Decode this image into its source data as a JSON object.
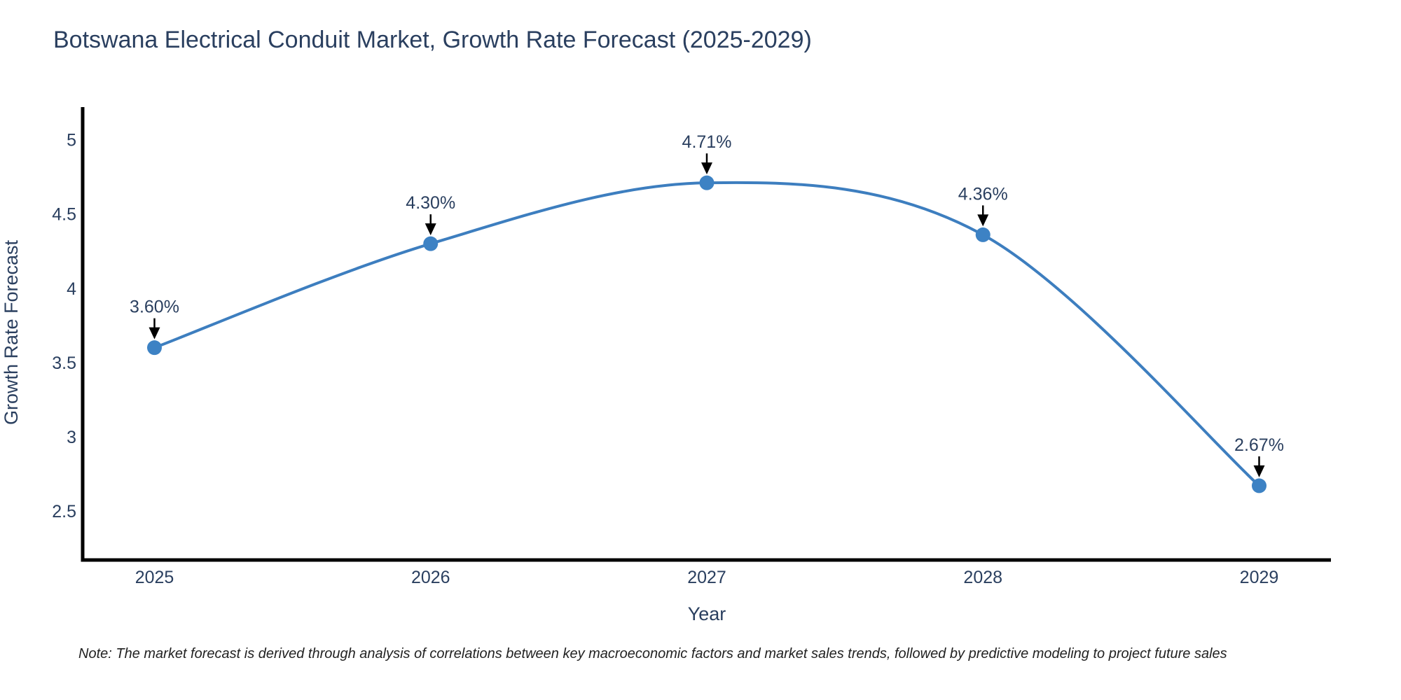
{
  "chart_data": {
    "type": "line",
    "title": "Botswana Electrical Conduit Market, Growth Rate Forecast (2025-2029)",
    "xlabel": "Year",
    "ylabel": "Growth Rate Forecast",
    "x": [
      2025,
      2026,
      2027,
      2028,
      2029
    ],
    "values": [
      3.6,
      4.3,
      4.71,
      4.36,
      2.67
    ],
    "point_labels": [
      "3.60%",
      "4.30%",
      "4.71%",
      "4.36%",
      "2.67%"
    ],
    "xticks": [
      2025,
      2026,
      2027,
      2028,
      2029
    ],
    "yticks": [
      2.5,
      3,
      3.5,
      4,
      4.5,
      5
    ],
    "xlim": [
      2024.74,
      2029.26
    ],
    "ylim": [
      2.17,
      5.22
    ],
    "grid": false,
    "legend": "none",
    "line_shape": "spline",
    "marker": "circle",
    "annotations_have_arrows": true,
    "note": "Note: The market forecast is derived through analysis of correlations between key macroeconomic factors and market sales trends, followed by predictive modeling to project future sales",
    "colors": {
      "line": "#3d7ebf",
      "marker": "#3d82c4",
      "axis": "#000000",
      "text": "#2a3f5f",
      "arrow": "#000000",
      "background": "#ffffff"
    }
  }
}
